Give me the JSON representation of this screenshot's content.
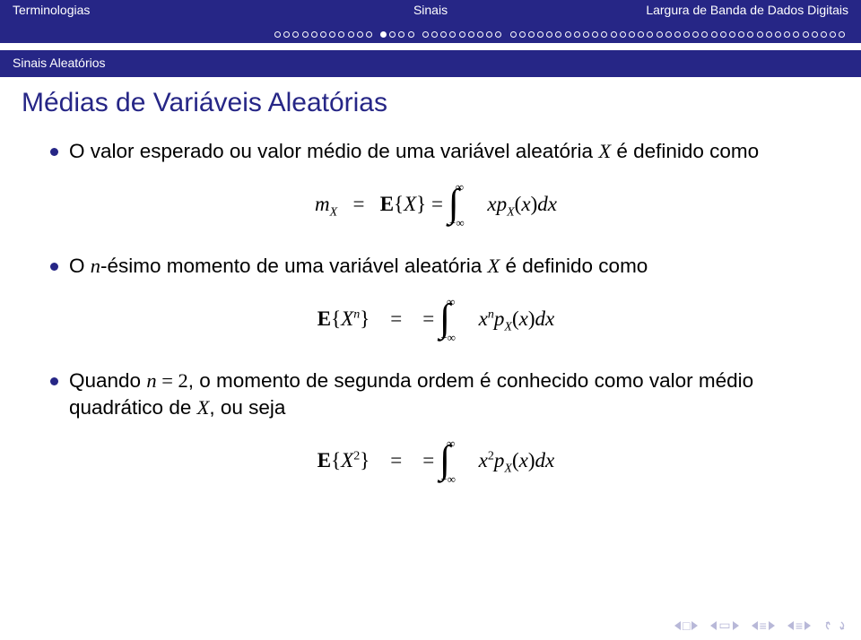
{
  "header": {
    "left": "Terminologias",
    "center": "Sinais",
    "right": "Largura de Banda de Dados Digitais"
  },
  "progress": {
    "groups": [
      {
        "count": 11,
        "filled": []
      },
      {
        "count": 4,
        "filled": [
          0
        ]
      },
      {
        "count": 9,
        "filled": []
      },
      {
        "count": 37,
        "filled": []
      }
    ],
    "dot_border": "#ffffff",
    "dot_fill": "#ffffff"
  },
  "subsection": "Sinais Aleatórios",
  "title": "Médias de Variáveis Aleatórias",
  "bullets": [
    {
      "text_pre": "O valor esperado ou valor médio de uma variável aleatória ",
      "var": "X",
      "text_post": " é definido como",
      "math": {
        "lhs": "m",
        "lhs_sub": "X",
        "eq1": " = ",
        "ebrace_pre": "E",
        "ebrace": "{X}",
        "eq2": " = ",
        "int_upper": "∞",
        "int_lower": "−∞",
        "integrand_pre": "xp",
        "integrand_sub": "X",
        "integrand_arg": "(x)dx"
      }
    },
    {
      "text_pre": "O ",
      "nth": "n",
      "text_mid": "-ésimo momento de uma variável aleatória ",
      "var": "X",
      "text_post": " é definido como",
      "math": {
        "ebrace_pre": "E",
        "ebrace_l": "{X",
        "ebrace_sup": "n",
        "ebrace_r": "}",
        "eq1": " = ",
        "eq2": " = ",
        "int_upper": "∞",
        "int_lower": "−∞",
        "integrand_x": "x",
        "integrand_sup": "n",
        "integrand_p": "p",
        "integrand_sub": "X",
        "integrand_arg": "(x)dx"
      }
    },
    {
      "text_pre": "Quando ",
      "cond": "n = 2",
      "text_mid": ", o momento de segunda ordem é conhecido como valor médio quadrático de ",
      "var": "X",
      "text_post": ", ou seja",
      "math": {
        "ebrace_pre": "E",
        "ebrace_l": "{X",
        "ebrace_sup": "2",
        "ebrace_r": "}",
        "eq1": " = ",
        "eq2": " = ",
        "int_upper": "∞",
        "int_lower": "−∞",
        "integrand_x": "x",
        "integrand_sup": "2",
        "integrand_p": "p",
        "integrand_sub": "X",
        "integrand_arg": "(x)dx"
      }
    }
  ],
  "colors": {
    "brand": "#262686",
    "bg": "#ffffff",
    "text": "#000000",
    "nav_faded": "#b8b8d8"
  },
  "nav_icons": {
    "square": "□",
    "screen": "▭",
    "lines_l": "≡",
    "lines_r": "≡"
  }
}
